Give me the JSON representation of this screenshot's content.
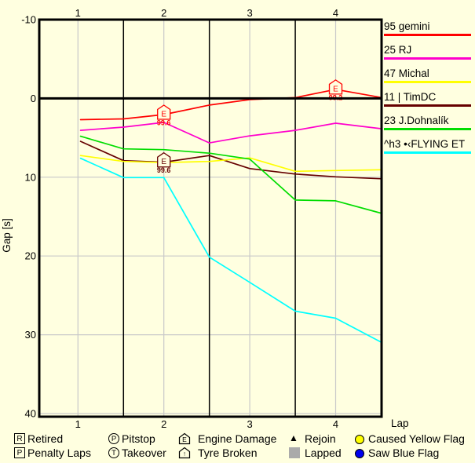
{
  "axes": {
    "x_label": "Lap",
    "y_label": "Gap [s]"
  },
  "chart_data": {
    "type": "line",
    "title": "",
    "xlabel": "Lap",
    "ylabel": "Gap [s]",
    "x_ticks": [
      1,
      2,
      3,
      4
    ],
    "y_ticks": [
      -10,
      0,
      10,
      20,
      30,
      40
    ],
    "xlim": [
      0.55,
      4.54
    ],
    "ylim": [
      -10,
      40
    ],
    "y_inverted": true,
    "grid": true,
    "lap_dividers": [
      1.53,
      2.53,
      3.53
    ],
    "x": [
      1.03,
      1.53,
      2.0,
      2.53,
      3.0,
      3.53,
      4.0,
      4.54
    ],
    "series": [
      {
        "name": "95 gemini",
        "color": "#ff0000",
        "values": [
          2.7,
          2.6,
          2.05,
          0.85,
          0.15,
          -0.1,
          -1.15,
          -0.1
        ]
      },
      {
        "name": "25 RJ",
        "color": "#ff00cc",
        "values": [
          4.05,
          3.65,
          3.05,
          5.65,
          4.75,
          4.05,
          3.15,
          3.85
        ]
      },
      {
        "name": "47 Michal",
        "color": "#ffff00",
        "values": [
          7.25,
          8.0,
          8.15,
          8.0,
          7.55,
          9.25,
          9.15,
          9.05
        ]
      },
      {
        "name": "11 | TimDC",
        "color": "#660000",
        "values": [
          5.45,
          7.9,
          8.1,
          7.25,
          8.9,
          9.6,
          9.95,
          10.2
        ]
      },
      {
        "name": "23 J.Dohnalík",
        "color": "#00dd00",
        "values": [
          4.8,
          6.4,
          6.5,
          6.95,
          7.7,
          12.9,
          13.0,
          14.6
        ]
      },
      {
        "name": "^h3 •‹FLYING ET",
        "color": "#00ffff",
        "values": [
          7.6,
          10.05,
          10.05,
          20.15,
          23.35,
          27.0,
          27.9,
          31.0
        ]
      }
    ],
    "markers": [
      {
        "series_index": 0,
        "x": 2,
        "type": "engine-damage",
        "symbol": "E",
        "label": "99.6"
      },
      {
        "series_index": 3,
        "x": 2,
        "type": "engine-damage",
        "symbol": "E",
        "label": "99.6"
      },
      {
        "series_index": 0,
        "x": 4,
        "type": "engine-damage",
        "symbol": "E",
        "label": "99.2"
      }
    ]
  },
  "legend": {
    "items": [
      {
        "label": "95 gemini",
        "color": "#ff0000"
      },
      {
        "label": "25 RJ",
        "color": "#ff00cc"
      },
      {
        "label": "47 Michal",
        "color": "#ffff00"
      },
      {
        "label": "11 | TimDC",
        "color": "#660000"
      },
      {
        "label": "23 J.Dohnalík",
        "color": "#00dd00"
      },
      {
        "label": "^h3 •‹FLYING ET",
        "color": "#00ffff"
      }
    ]
  },
  "bottom_legend": {
    "rows": [
      [
        {
          "icon": "box",
          "symbol": "R",
          "label": "Retired"
        },
        {
          "icon": "circle",
          "symbol": "P",
          "label": "Pitstop"
        },
        {
          "icon": "pentagon",
          "symbol": "E",
          "label": "Engine Damage"
        },
        {
          "icon": "triangle",
          "symbol": "▲",
          "label": "Rejoin",
          "color": "#000000"
        },
        {
          "icon": "dot",
          "symbol": "",
          "label": "Caused Yellow Flag",
          "color": "#ffff00"
        }
      ],
      [
        {
          "icon": "box",
          "symbol": "P",
          "label": "Penalty Laps"
        },
        {
          "icon": "circle",
          "symbol": "T",
          "label": "Takeover"
        },
        {
          "icon": "pentagon",
          "symbol": "↑",
          "label": "Tyre Broken"
        },
        {
          "icon": "square",
          "symbol": "",
          "label": "Lapped",
          "color": "#aaaaaa"
        },
        {
          "icon": "dot",
          "symbol": "",
          "label": "Saw Blue Flag",
          "color": "#0000ee"
        }
      ]
    ]
  },
  "colors": {
    "background": "#ffffe0",
    "grid": "#c9c9c9",
    "axis": "#000000",
    "marker_fill": "#ffffe0"
  }
}
